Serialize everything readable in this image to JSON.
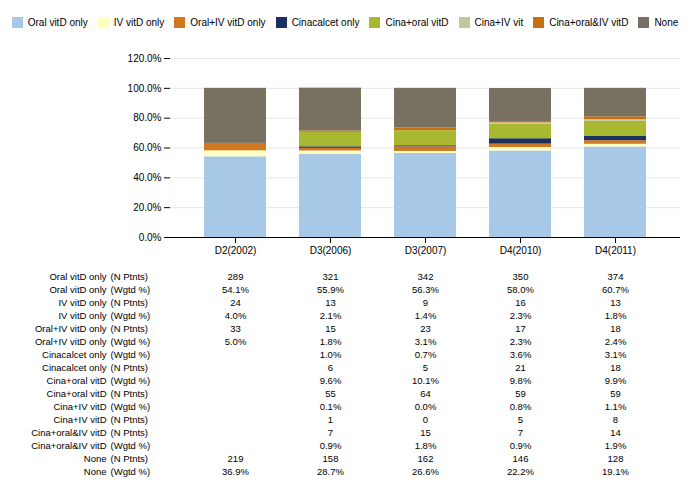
{
  "chart_data": {
    "type": "bar",
    "stacked": true,
    "grid": true,
    "categories": [
      "D2(2002)",
      "D3(2006)",
      "D3(2007)",
      "D4(2010)",
      "D4(2011)"
    ],
    "series": [
      {
        "name": "Oral vitD only",
        "color": "#a8c8e8",
        "values": [
          54.1,
          55.9,
          56.3,
          58.0,
          60.7
        ]
      },
      {
        "name": "IV vitD only",
        "color": "#ffffc0",
        "values": [
          4.0,
          2.1,
          1.4,
          2.3,
          1.8
        ]
      },
      {
        "name": "Oral+IV vitD only",
        "color": "#d07820",
        "values": [
          5.0,
          1.8,
          3.1,
          2.3,
          2.4
        ]
      },
      {
        "name": "Cinacalcet only",
        "color": "#1a3060",
        "values": [
          0.0,
          1.0,
          0.7,
          3.6,
          3.1
        ]
      },
      {
        "name": "Cina+oral vitD",
        "color": "#a8b830",
        "values": [
          0.0,
          9.6,
          10.1,
          9.8,
          9.9
        ]
      },
      {
        "name": "Cina+IV vit",
        "color": "#c0c8a0",
        "values": [
          0.0,
          0.1,
          0.0,
          0.8,
          1.1
        ]
      },
      {
        "name": "Cina+oral&IV vitD",
        "color": "#c87010",
        "values": [
          0.0,
          0.9,
          1.8,
          0.9,
          1.9
        ]
      },
      {
        "name": "None",
        "color": "#787060",
        "values": [
          36.9,
          28.7,
          26.6,
          22.2,
          19.1
        ]
      }
    ],
    "ylim": [
      0,
      120
    ],
    "yticks": [
      {
        "value": 0,
        "label": "0.0%"
      },
      {
        "value": 20,
        "label": "20.0%"
      },
      {
        "value": 40,
        "label": "40.0%"
      },
      {
        "value": 60,
        "label": "60.0%"
      },
      {
        "value": 80,
        "label": "80.0%"
      },
      {
        "value": 100,
        "label": "100.0%"
      },
      {
        "value": 120,
        "label": "120.0%"
      }
    ],
    "table_rows": [
      [
        "Oral vitD only",
        "(N Ptnts)",
        "289",
        "321",
        "342",
        "350",
        "374"
      ],
      [
        "Oral vitD only",
        "(Wgtd %)",
        "54.1%",
        "55.9%",
        "56.3%",
        "58.0%",
        "60.7%"
      ],
      [
        "IV vitD only",
        "(N Ptnts)",
        "24",
        "13",
        "9",
        "16",
        "13"
      ],
      [
        "IV vitD only",
        "(Wgtd %)",
        "4.0%",
        "2.1%",
        "1.4%",
        "2.3%",
        "1.8%"
      ],
      [
        "Oral+IV vitD only",
        "(N Ptnts)",
        "33",
        "15",
        "23",
        "17",
        "18"
      ],
      [
        "Oral+IV vitD only",
        "(Wgtd %)",
        "5.0%",
        "1.8%",
        "3.1%",
        "2.3%",
        "2.4%"
      ],
      [
        "Cinacalcet only",
        "(Wgtd %)",
        null,
        "1.0%",
        "0.7%",
        "3.6%",
        "3.1%"
      ],
      [
        "Cinacalcet only",
        "(N Ptnts)",
        null,
        "6",
        "5",
        "21",
        "18"
      ],
      [
        "Cina+oral vitD",
        "(Wgtd %)",
        null,
        "9.6%",
        "10.1%",
        "9.8%",
        "9.9%"
      ],
      [
        "Cina+oral vitD",
        "(N Ptnts)",
        null,
        "55",
        "64",
        "59",
        "59"
      ],
      [
        "Cina+IV vitD",
        "(Wgtd %)",
        null,
        "0.1%",
        "0.0%",
        "0.8%",
        "1.1%"
      ],
      [
        "Cina+IV vitD",
        "(N Ptnts)",
        null,
        "1",
        "0",
        "5",
        "8"
      ],
      [
        "Cina+oral&IV vitD",
        "(N Ptnts)",
        null,
        "7",
        "15",
        "7",
        "14"
      ],
      [
        "Cina+oral&IV vitD",
        "(Wgtd %)",
        null,
        "0.9%",
        "1.8%",
        "0.9%",
        "1.9%"
      ],
      [
        "None",
        "(N Ptnts)",
        "219",
        "158",
        "162",
        "146",
        "128"
      ],
      [
        "None",
        "(Wgtd %)",
        "36.9%",
        "28.7%",
        "26.6%",
        "22.2%",
        "19.1%"
      ]
    ]
  }
}
